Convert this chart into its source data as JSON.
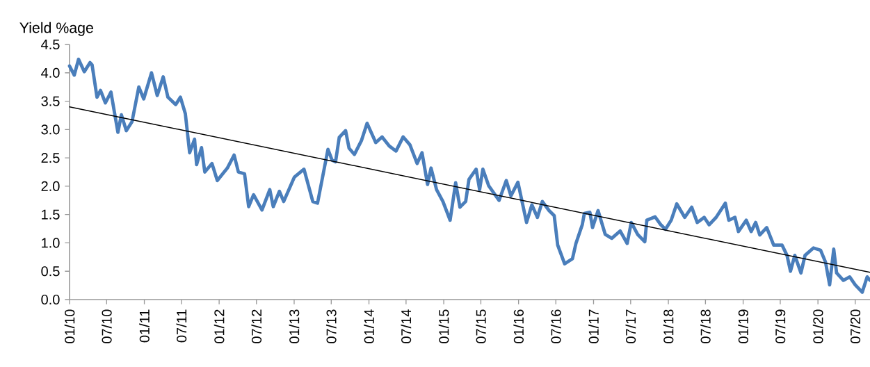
{
  "chart_data": {
    "type": "line",
    "ylabel": "Yield %age",
    "xlim": [
      "2010-01-01",
      "2020-09-11"
    ],
    "ylim": [
      0,
      4.5
    ],
    "yticks": [
      {
        "value": 0,
        "label": "0.0"
      },
      0.5,
      {
        "value": 1,
        "label": "1.0"
      },
      1.5,
      {
        "value": 2,
        "label": "2.0"
      },
      2.5,
      {
        "value": 3,
        "label": "3.0"
      },
      3.5,
      {
        "value": 4,
        "label": "4.0"
      },
      4.5
    ],
    "xticks": [
      {
        "value": "2010-01-01",
        "label": "01/10"
      },
      {
        "value": "2010-07-01",
        "label": "07/10"
      },
      {
        "value": "2011-01-01",
        "label": "01/11"
      },
      {
        "value": "2011-07-01",
        "label": "07/11"
      },
      {
        "value": "2012-01-01",
        "label": "01/12"
      },
      {
        "value": "2012-07-01",
        "label": "07/12"
      },
      {
        "value": "2013-01-01",
        "label": "01/13"
      },
      {
        "value": "2013-07-01",
        "label": "07/13"
      },
      {
        "value": "2014-01-01",
        "label": "01/14"
      },
      {
        "value": "2014-07-01",
        "label": "07/14"
      },
      {
        "value": "2015-01-01",
        "label": "01/15"
      },
      {
        "value": "2015-07-01",
        "label": "07/15"
      },
      {
        "value": "2016-01-01",
        "label": "01/16"
      },
      {
        "value": "2016-07-01",
        "label": "07/16"
      },
      {
        "value": "2017-01-01",
        "label": "01/17"
      },
      {
        "value": "2017-07-01",
        "label": "07/17"
      },
      {
        "value": "2018-01-01",
        "label": "01/18"
      },
      {
        "value": "2018-07-01",
        "label": "07/18"
      },
      {
        "value": "2019-01-01",
        "label": "01/19"
      },
      {
        "value": "2019-07-01",
        "label": "07/19"
      },
      {
        "value": "2020-01-01",
        "label": "01/20"
      },
      {
        "value": "2020-07-01",
        "label": "07/20"
      }
    ],
    "series": [
      {
        "color": "#4a7ebb",
        "x": [
          "2010-01-01",
          "2010-01-24",
          "2010-02-14",
          "2010-03-14",
          "2010-04-11",
          "2010-04-21",
          "2010-05-15",
          "2010-06-01",
          "2010-06-25",
          "2010-07-22",
          "2010-08-25",
          "2010-09-11",
          "2010-10-05",
          "2010-11-02",
          "2010-12-05",
          "2010-12-29",
          "2011-02-05",
          "2011-03-05",
          "2011-04-03",
          "2011-04-26",
          "2011-06-03",
          "2011-06-26",
          "2011-07-20",
          "2011-08-10",
          "2011-09-03",
          "2011-09-13",
          "2011-10-07",
          "2011-10-23",
          "2011-11-27",
          "2011-12-23",
          "2012-02-10",
          "2012-03-14",
          "2012-04-04",
          "2012-05-04",
          "2012-05-24",
          "2012-06-17",
          "2012-07-28",
          "2012-09-04",
          "2012-09-21",
          "2012-10-21",
          "2012-11-11",
          "2013-01-02",
          "2013-02-18",
          "2013-04-02",
          "2013-04-25",
          "2013-06-15",
          "2013-07-05",
          "2013-07-22",
          "2013-08-09",
          "2013-09-09",
          "2013-09-26",
          "2013-10-22",
          "2013-11-26",
          "2013-12-23",
          "2014-02-03",
          "2014-03-06",
          "2014-04-10",
          "2014-05-13",
          "2014-06-17",
          "2014-07-20",
          "2014-08-24",
          "2014-09-17",
          "2014-10-14",
          "2014-10-31",
          "2014-11-27",
          "2014-12-28",
          "2015-02-01",
          "2015-02-28",
          "2015-03-21",
          "2015-04-18",
          "2015-05-04",
          "2015-06-08",
          "2015-06-25",
          "2015-07-11",
          "2015-08-08",
          "2015-09-28",
          "2015-11-02",
          "2015-11-25",
          "2015-12-29",
          "2016-02-09",
          "2016-03-06",
          "2016-04-02",
          "2016-04-26",
          "2016-05-29",
          "2016-06-23",
          "2016-07-10",
          "2016-08-13",
          "2016-09-20",
          "2016-10-07",
          "2016-11-07",
          "2016-11-17",
          "2016-12-14",
          "2016-12-27",
          "2017-01-23",
          "2017-02-27",
          "2017-03-31",
          "2017-05-11",
          "2017-06-14",
          "2017-07-04",
          "2017-08-04",
          "2017-09-08",
          "2017-09-18",
          "2017-10-28",
          "2017-11-25",
          "2017-12-18",
          "2018-01-15",
          "2018-02-11",
          "2018-03-22",
          "2018-04-25",
          "2018-05-22",
          "2018-06-25",
          "2018-07-19",
          "2018-08-22",
          "2018-10-06",
          "2018-10-23",
          "2018-11-22",
          "2018-12-09",
          "2019-01-16",
          "2019-02-09",
          "2019-03-03",
          "2019-03-23",
          "2019-04-26",
          "2019-05-30",
          "2019-07-10",
          "2019-08-03",
          "2019-08-20",
          "2019-09-10",
          "2019-10-10",
          "2019-10-30",
          "2019-12-10",
          "2020-01-14",
          "2020-02-07",
          "2020-02-27",
          "2020-03-18",
          "2020-04-01",
          "2020-05-04",
          "2020-06-04",
          "2020-07-01",
          "2020-08-04",
          "2020-08-28",
          "2020-09-11"
        ],
        "values": [
          4.12,
          3.96,
          4.24,
          4.02,
          4.18,
          4.14,
          3.57,
          3.69,
          3.47,
          3.66,
          2.95,
          3.26,
          2.98,
          3.14,
          3.75,
          3.54,
          4.0,
          3.6,
          3.93,
          3.57,
          3.44,
          3.57,
          3.28,
          2.59,
          2.83,
          2.38,
          2.68,
          2.25,
          2.4,
          2.1,
          2.32,
          2.55,
          2.25,
          2.22,
          1.64,
          1.85,
          1.58,
          1.94,
          1.64,
          1.91,
          1.73,
          2.16,
          2.3,
          1.73,
          1.7,
          2.65,
          2.46,
          2.43,
          2.86,
          2.98,
          2.67,
          2.56,
          2.81,
          3.11,
          2.77,
          2.87,
          2.71,
          2.62,
          2.87,
          2.73,
          2.4,
          2.59,
          2.03,
          2.32,
          1.94,
          1.73,
          1.4,
          2.06,
          1.63,
          1.73,
          2.12,
          2.3,
          1.94,
          2.3,
          2.01,
          1.75,
          2.1,
          1.83,
          2.07,
          1.36,
          1.67,
          1.45,
          1.73,
          1.57,
          1.48,
          0.96,
          0.63,
          0.72,
          0.99,
          1.32,
          1.52,
          1.54,
          1.27,
          1.57,
          1.15,
          1.08,
          1.21,
          0.99,
          1.36,
          1.15,
          1.02,
          1.4,
          1.46,
          1.32,
          1.24,
          1.4,
          1.69,
          1.45,
          1.63,
          1.36,
          1.45,
          1.32,
          1.45,
          1.7,
          1.4,
          1.45,
          1.2,
          1.4,
          1.2,
          1.36,
          1.14,
          1.27,
          0.96,
          0.96,
          0.78,
          0.5,
          0.78,
          0.47,
          0.78,
          0.91,
          0.87,
          0.66,
          0.26,
          0.89,
          0.47,
          0.34,
          0.4,
          0.26,
          0.13,
          0.4,
          0.34
        ]
      },
      {
        "type": "line",
        "color": "#000000",
        "x": [
          "2010-01-01",
          "2020-09-11"
        ],
        "values": [
          3.4,
          0.48
        ]
      }
    ]
  }
}
